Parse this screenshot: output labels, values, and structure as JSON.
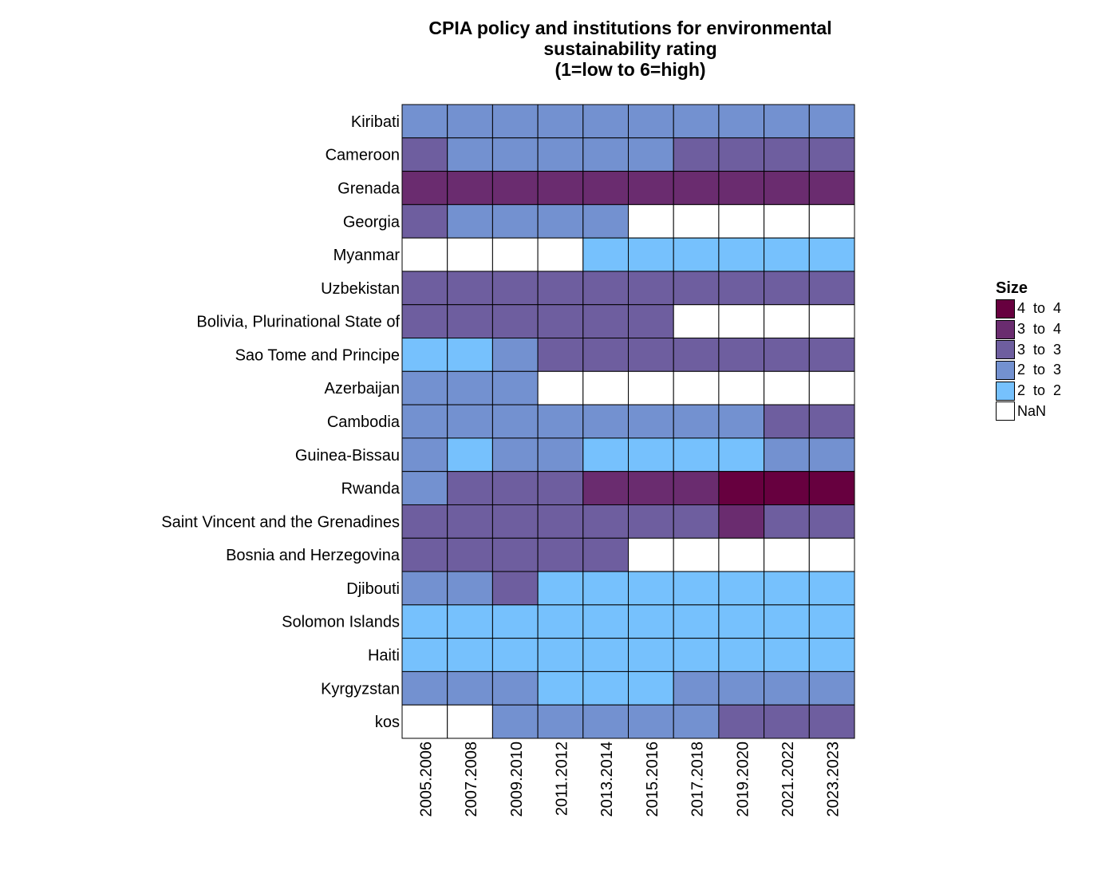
{
  "chart_data": {
    "type": "heatmap",
    "title_lines": [
      "CPIA policy and institutions for environmental",
      "sustainability rating",
      "(1=low to 6=high)"
    ],
    "xlabel": "",
    "ylabel": "",
    "x": [
      "2005.2006",
      "2007.2008",
      "2009.2010",
      "2011.2012",
      "2013.2014",
      "2015.2016",
      "2017.2018",
      "2019.2020",
      "2021.2022",
      "2023.2023"
    ],
    "y": [
      "Kiribati",
      "Cameroon",
      "Grenada",
      "Georgia",
      "Myanmar",
      "Uzbekistan",
      "Bolivia, Plurinational State of",
      "Sao Tome and Principe",
      "Azerbaijan",
      "Cambodia",
      "Guinea-Bissau",
      "Rwanda",
      "Saint Vincent and the Grenadines",
      "Bosnia and Herzegovina",
      "Djibouti",
      "Solomon Islands",
      "Haiti",
      "Kyrgyzstan",
      "kos"
    ],
    "values": [
      [
        "2 to 3",
        "2 to 3",
        "2 to 3",
        "2 to 3",
        "2 to 3",
        "2 to 3",
        "2 to 3",
        "2 to 3",
        "2 to 3",
        "2 to 3"
      ],
      [
        "3 to 3",
        "2 to 3",
        "2 to 3",
        "2 to 3",
        "2 to 3",
        "2 to 3",
        "3 to 3",
        "3 to 3",
        "3 to 3",
        "3 to 3"
      ],
      [
        "3 to 4",
        "3 to 4",
        "3 to 4",
        "3 to 4",
        "3 to 4",
        "3 to 4",
        "3 to 4",
        "3 to 4",
        "3 to 4",
        "3 to 4"
      ],
      [
        "3 to 3",
        "2 to 3",
        "2 to 3",
        "2 to 3",
        "2 to 3",
        "NaN",
        "NaN",
        "NaN",
        "NaN",
        "NaN"
      ],
      [
        "NaN",
        "NaN",
        "NaN",
        "NaN",
        "2 to 2",
        "2 to 2",
        "2 to 2",
        "2 to 2",
        "2 to 2",
        "2 to 2"
      ],
      [
        "3 to 3",
        "3 to 3",
        "3 to 3",
        "3 to 3",
        "3 to 3",
        "3 to 3",
        "3 to 3",
        "3 to 3",
        "3 to 3",
        "3 to 3"
      ],
      [
        "3 to 3",
        "3 to 3",
        "3 to 3",
        "3 to 3",
        "3 to 3",
        "3 to 3",
        "NaN",
        "NaN",
        "NaN",
        "NaN"
      ],
      [
        "2 to 2",
        "2 to 2",
        "2 to 3",
        "3 to 3",
        "3 to 3",
        "3 to 3",
        "3 to 3",
        "3 to 3",
        "3 to 3",
        "3 to 3"
      ],
      [
        "2 to 3",
        "2 to 3",
        "2 to 3",
        "NaN",
        "NaN",
        "NaN",
        "NaN",
        "NaN",
        "NaN",
        "NaN"
      ],
      [
        "2 to 3",
        "2 to 3",
        "2 to 3",
        "2 to 3",
        "2 to 3",
        "2 to 3",
        "2 to 3",
        "2 to 3",
        "3 to 3",
        "3 to 3"
      ],
      [
        "2 to 3",
        "2 to 2",
        "2 to 3",
        "2 to 3",
        "2 to 2",
        "2 to 2",
        "2 to 2",
        "2 to 2",
        "2 to 3",
        "2 to 3"
      ],
      [
        "2 to 3",
        "3 to 3",
        "3 to 3",
        "3 to 3",
        "3 to 4",
        "3 to 4",
        "3 to 4",
        "4 to 4",
        "4 to 4",
        "4 to 4"
      ],
      [
        "3 to 3",
        "3 to 3",
        "3 to 3",
        "3 to 3",
        "3 to 3",
        "3 to 3",
        "3 to 3",
        "3 to 4",
        "3 to 3",
        "3 to 3"
      ],
      [
        "3 to 3",
        "3 to 3",
        "3 to 3",
        "3 to 3",
        "3 to 3",
        "NaN",
        "NaN",
        "NaN",
        "NaN",
        "NaN"
      ],
      [
        "2 to 3",
        "2 to 3",
        "3 to 3",
        "2 to 2",
        "2 to 2",
        "2 to 2",
        "2 to 2",
        "2 to 2",
        "2 to 2",
        "2 to 2"
      ],
      [
        "2 to 2",
        "2 to 2",
        "2 to 2",
        "2 to 2",
        "2 to 2",
        "2 to 2",
        "2 to 2",
        "2 to 2",
        "2 to 2",
        "2 to 2"
      ],
      [
        "2 to 2",
        "2 to 2",
        "2 to 2",
        "2 to 2",
        "2 to 2",
        "2 to 2",
        "2 to 2",
        "2 to 2",
        "2 to 2",
        "2 to 2"
      ],
      [
        "2 to 3",
        "2 to 3",
        "2 to 3",
        "2 to 2",
        "2 to 2",
        "2 to 2",
        "2 to 3",
        "2 to 3",
        "2 to 3",
        "2 to 3"
      ],
      [
        "NaN",
        "NaN",
        "2 to 3",
        "2 to 3",
        "2 to 3",
        "2 to 3",
        "2 to 3",
        "3 to 3",
        "3 to 3",
        "3 to 3"
      ]
    ],
    "legend": {
      "title": "Size",
      "placement": "right",
      "items": [
        {
          "label": "4  to  4",
          "color": "#67003f"
        },
        {
          "label": "3  to  4",
          "color": "#6a2c6f"
        },
        {
          "label": "3  to  3",
          "color": "#6e5e9f"
        },
        {
          "label": "2  to  3",
          "color": "#7391d0"
        },
        {
          "label": "2  to  2",
          "color": "#76c1fd"
        },
        {
          "label": "NaN",
          "color": "#ffffff"
        }
      ]
    },
    "grid": false
  }
}
